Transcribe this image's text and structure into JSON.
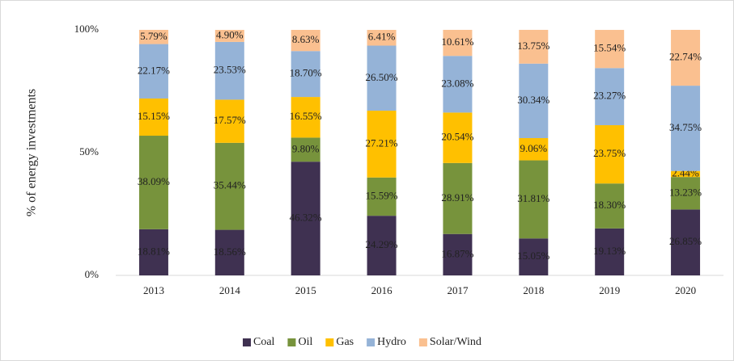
{
  "chart_data": {
    "type": "stacked_bar",
    "y_label": "% of energy investments",
    "categories": [
      "2013",
      "2014",
      "2015",
      "2016",
      "2017",
      "2018",
      "2019",
      "2020"
    ],
    "series": [
      {
        "name": "Coal",
        "color": "#3f3151",
        "values": [
          18.81,
          18.56,
          46.32,
          24.29,
          16.87,
          15.05,
          19.13,
          26.85
        ],
        "value_labels": [
          "18.81%",
          "18.56%",
          "46.32%",
          "24.29%",
          "16.87%",
          "15.05%",
          "19.13%",
          "26.85%"
        ]
      },
      {
        "name": "Oil",
        "color": "#77933c",
        "values": [
          38.09,
          35.44,
          9.8,
          15.59,
          28.91,
          31.81,
          18.3,
          13.23
        ],
        "value_labels": [
          "38.09%",
          "35.44%",
          "9.80%",
          "15.59%",
          "28.91%",
          "31.81%",
          "18.30%",
          "13.23%"
        ]
      },
      {
        "name": "Gas",
        "color": "#ffc000",
        "values": [
          15.15,
          17.57,
          16.55,
          27.21,
          20.54,
          9.06,
          23.75,
          2.44
        ],
        "value_labels": [
          "15.15%",
          "17.57%",
          "16.55%",
          "27.21%",
          "20.54%",
          "9.06%",
          "23.75%",
          "2.44%"
        ]
      },
      {
        "name": "Hydro",
        "color": "#95b3d7",
        "values": [
          22.17,
          23.53,
          18.7,
          26.5,
          23.08,
          30.34,
          23.27,
          34.75
        ],
        "value_labels": [
          "22.17%",
          "23.53%",
          "18.70%",
          "26.50%",
          "23.08%",
          "30.34%",
          "23.27%",
          "34.75%"
        ]
      },
      {
        "name": "Solar/Wind",
        "color": "#fac090",
        "values": [
          5.79,
          4.9,
          8.63,
          6.41,
          10.61,
          13.75,
          15.54,
          22.74
        ],
        "value_labels": [
          "5.79%",
          "4.90%",
          "8.63%",
          "6.41%",
          "10.61%",
          "13.75%",
          "15.54%",
          "22.74%"
        ]
      }
    ],
    "ylim": [
      0,
      100
    ],
    "yticks": [
      {
        "value": 0,
        "label": "0%"
      },
      {
        "value": 50,
        "label": "50%"
      },
      {
        "value": 100,
        "label": "100%"
      }
    ],
    "grid": false,
    "legend": "bottom"
  }
}
